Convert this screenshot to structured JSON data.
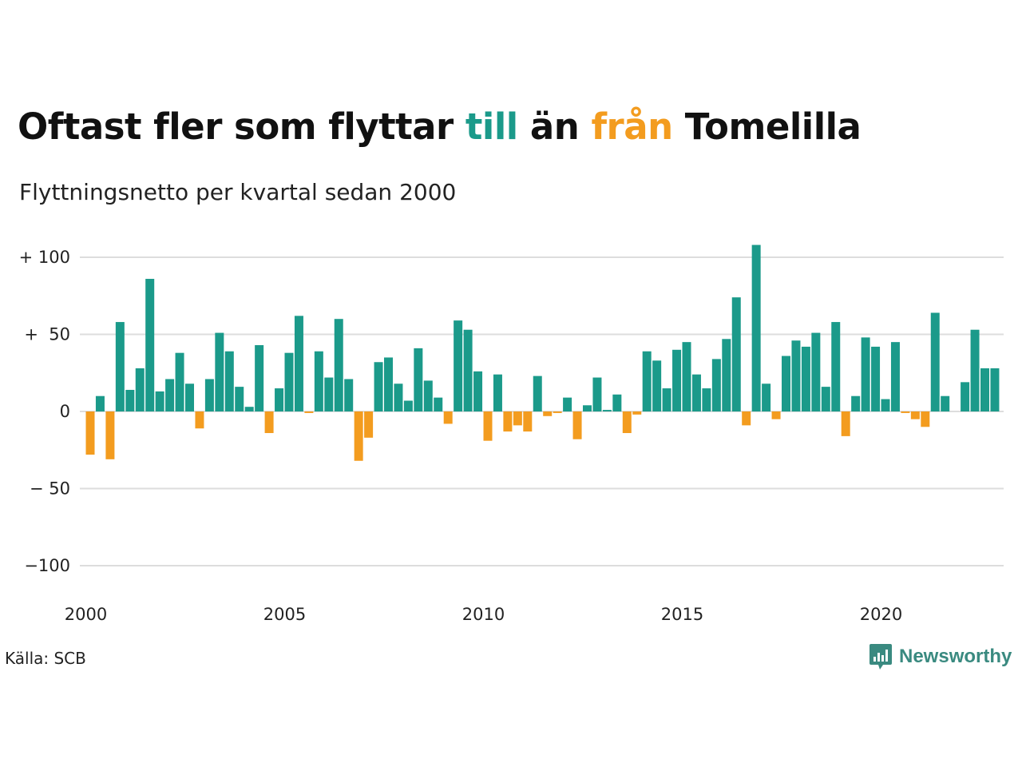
{
  "title": {
    "part1": "Oftast fler som flyttar ",
    "pos_word": "till",
    "part2": " än ",
    "neg_word": "från",
    "part3": " Tomelilla"
  },
  "subtitle": "Flyttningsnetto per kvartal sedan 2000",
  "source": "Källa: SCB",
  "brand": {
    "name": "Newsworthy",
    "icon": "newsworthy-logo-icon"
  },
  "colors": {
    "positive": "#1b9a8a",
    "negative": "#f39c1f",
    "grid": "#dddddd",
    "brand": "#3a8a80"
  },
  "chart_data": {
    "type": "bar",
    "title": "Oftast fler som flyttar till än från Tomelilla",
    "subtitle": "Flyttningsnetto per kvartal sedan 2000",
    "xlabel": "",
    "ylabel": "",
    "ylim": [
      -110,
      110
    ],
    "y_ticks": [
      {
        "value": 100,
        "label": "+ 100"
      },
      {
        "value": 50,
        "label": "+  50"
      },
      {
        "value": 0,
        "label": "0"
      },
      {
        "value": -50,
        "label": "− 50"
      },
      {
        "value": -100,
        "label": "−100"
      }
    ],
    "x_ticks": [
      {
        "year": 2000,
        "label": "2000"
      },
      {
        "year": 2005,
        "label": "2005"
      },
      {
        "year": 2010,
        "label": "2010"
      },
      {
        "year": 2015,
        "label": "2015"
      },
      {
        "year": 2020,
        "label": "2020"
      }
    ],
    "start_year": 2000,
    "grid": true,
    "legend": "none",
    "values": [
      -28,
      10,
      -31,
      58,
      14,
      28,
      86,
      13,
      21,
      38,
      18,
      -11,
      21,
      51,
      39,
      16,
      3,
      43,
      -14,
      15,
      38,
      62,
      -1,
      39,
      22,
      60,
      21,
      -32,
      -17,
      32,
      35,
      18,
      7,
      41,
      20,
      9,
      -8,
      59,
      53,
      26,
      -19,
      24,
      -13,
      -9,
      -13,
      23,
      -3,
      -1,
      9,
      -18,
      4,
      22,
      1,
      11,
      -14,
      -2,
      39,
      33,
      15,
      40,
      45,
      24,
      15,
      34,
      47,
      74,
      -9,
      108,
      18,
      -5,
      36,
      46,
      42,
      51,
      16,
      58,
      -16,
      10,
      48,
      42,
      8,
      45,
      -1,
      -5,
      -10,
      64,
      10,
      0,
      19,
      53,
      28,
      28
    ]
  }
}
